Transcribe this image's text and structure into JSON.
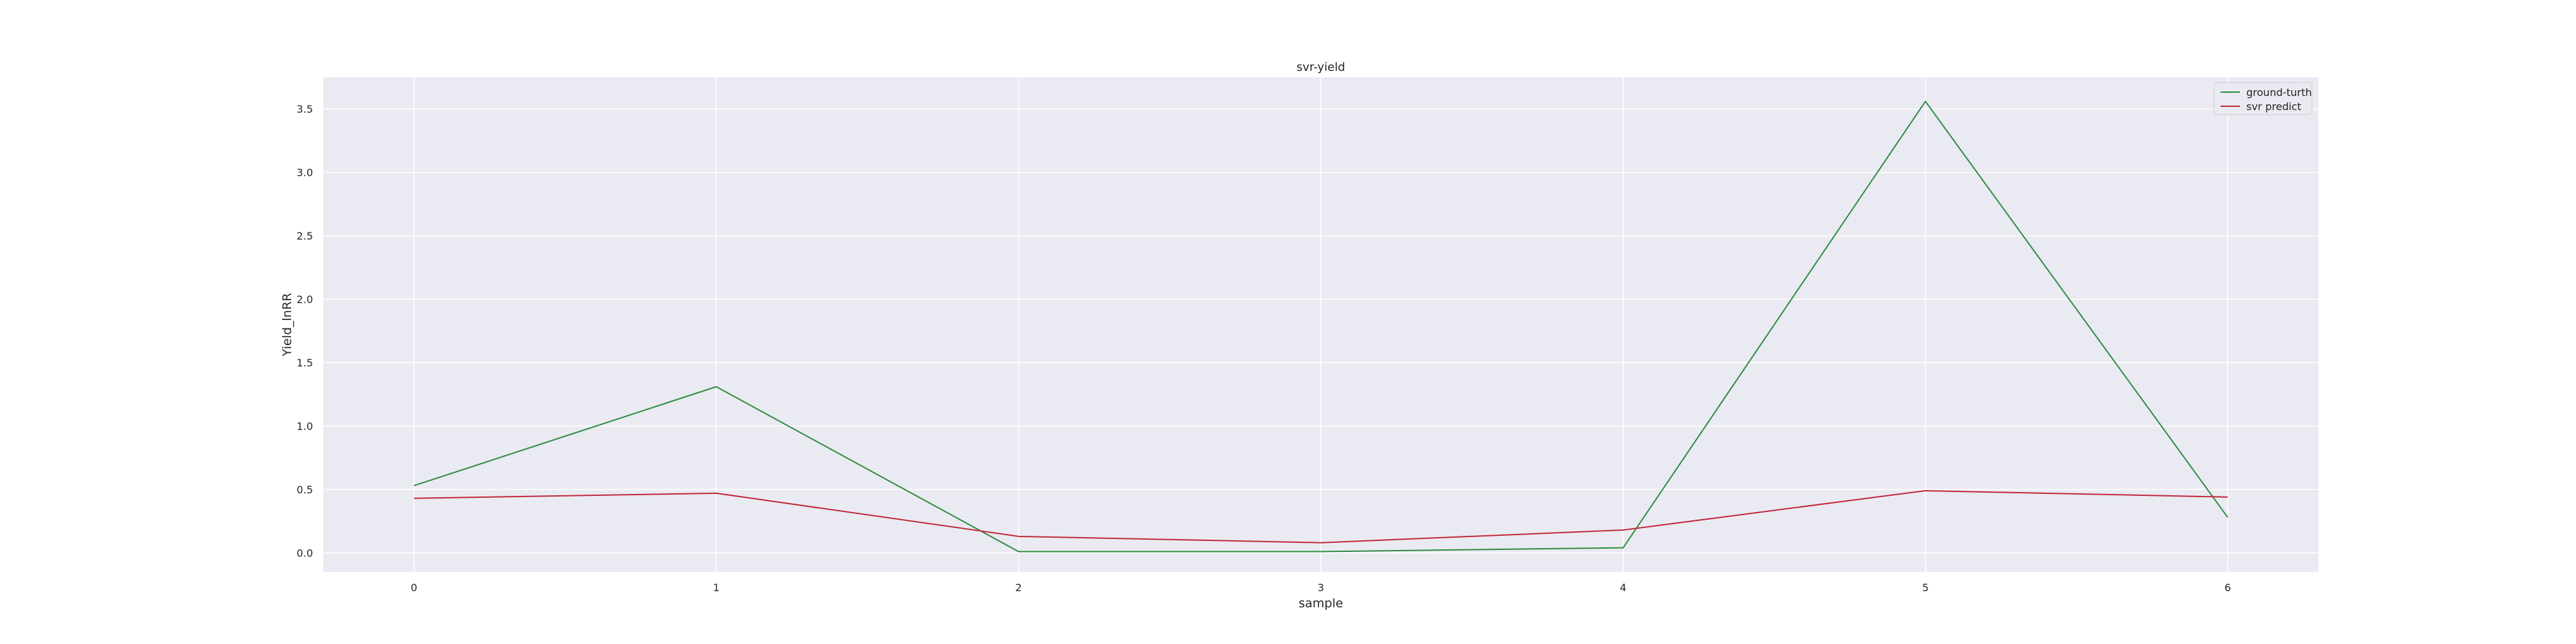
{
  "chart_data": {
    "type": "line",
    "title": "svr-yield",
    "xlabel": "sample",
    "ylabel": "Yield_lnRR",
    "x": [
      0,
      1,
      2,
      3,
      4,
      5,
      6
    ],
    "xticks": [
      "0",
      "1",
      "2",
      "3",
      "4",
      "5",
      "6"
    ],
    "yticks": [
      "0.0",
      "0.5",
      "1.0",
      "1.5",
      "2.0",
      "2.5",
      "3.0",
      "3.5"
    ],
    "xlim": [
      -0.3,
      6.3
    ],
    "ylim": [
      -0.15,
      3.75
    ],
    "grid": true,
    "legend_position": "top-right",
    "background": "#eaeaf2",
    "series": [
      {
        "name": "ground-turth",
        "color": "#2e8b3e",
        "values": [
          0.53,
          1.31,
          0.01,
          0.01,
          0.04,
          3.56,
          0.28
        ]
      },
      {
        "name": "svr predict",
        "color": "#c0283a",
        "values": [
          0.43,
          0.47,
          0.13,
          0.08,
          0.18,
          0.49,
          0.44
        ]
      }
    ]
  }
}
